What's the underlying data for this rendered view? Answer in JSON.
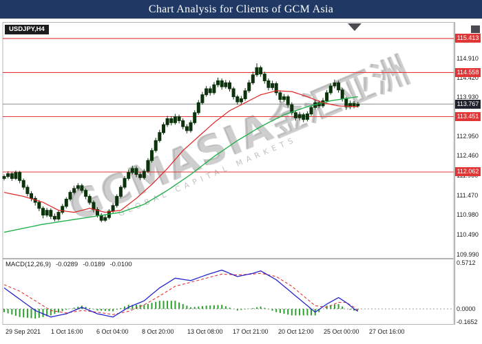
{
  "title_bar": {
    "text": "Chart Analysis for Clients of GCM Asia"
  },
  "chart": {
    "symbol_label": "USDJPY,H4",
    "watermark": {
      "main": "GCMASIA",
      "cjk": "金汇亚洲",
      "sub": "GLOBAL CAPITAL MARKETS"
    },
    "current_price_label": "113.767",
    "level_badges": [
      "115.413",
      "114.558",
      "113.451",
      "112.062"
    ]
  },
  "indicator": {
    "label": "MACD(12,26,9)",
    "value_macd": "-0.0289",
    "value_signal": "-0.0189",
    "value_hist": "-0.0100"
  },
  "colors": {
    "title_bg": "#203864",
    "level_red": "#e23535",
    "current_badge": "#20222e",
    "candle": "#0d330d",
    "ma_red": "#e02020",
    "ma_green": "#22b14c",
    "macd_line": "#2424cc",
    "signal_line": "#dd2222",
    "histogram": "#2aa12a"
  },
  "chart_data": [
    {
      "type": "candlestick",
      "symbol": "USDJPY",
      "timeframe": "H4",
      "price_axis_ticks": [
        "114.910",
        "114.420",
        "113.930",
        "112.950",
        "112.460",
        "111.960",
        "111.470",
        "110.980",
        "110.490",
        "109.990"
      ],
      "levels": [
        115.413,
        114.558,
        113.451,
        112.062
      ],
      "current_price": 113.767,
      "x_labels": [
        "29 Sep 2021",
        "1 Oct 16:00",
        "6 Oct 04:00",
        "8 Oct 20:00",
        "13 Oct 08:00",
        "17 Oct 21:00",
        "20 Oct 12:00",
        "25 Oct 00:00",
        "27 Oct 16:00"
      ],
      "candles": [
        [
          111.9,
          112.0,
          111.85,
          111.95
        ],
        [
          111.95,
          112.08,
          111.9,
          112.02
        ],
        [
          112.02,
          112.07,
          111.84,
          111.9
        ],
        [
          111.9,
          112.1,
          111.86,
          112.05
        ],
        [
          112.05,
          112.09,
          111.78,
          111.85
        ],
        [
          111.85,
          111.9,
          111.62,
          111.68
        ],
        [
          111.68,
          111.74,
          111.45,
          111.52
        ],
        [
          111.52,
          111.58,
          111.33,
          111.4
        ],
        [
          111.4,
          111.46,
          111.22,
          111.3
        ],
        [
          111.3,
          111.36,
          111.08,
          111.15
        ],
        [
          111.15,
          111.2,
          110.9,
          110.98
        ],
        [
          110.98,
          111.16,
          110.93,
          111.1
        ],
        [
          111.1,
          111.15,
          110.88,
          110.95
        ],
        [
          110.95,
          111.02,
          110.82,
          110.88
        ],
        [
          110.88,
          111.1,
          110.84,
          111.05
        ],
        [
          111.05,
          111.26,
          111.0,
          111.2
        ],
        [
          111.2,
          111.43,
          111.15,
          111.38
        ],
        [
          111.38,
          111.6,
          111.33,
          111.55
        ],
        [
          111.55,
          111.72,
          111.5,
          111.65
        ],
        [
          111.65,
          111.78,
          111.6,
          111.72
        ],
        [
          111.72,
          111.77,
          111.54,
          111.6
        ],
        [
          111.6,
          111.65,
          111.38,
          111.45
        ],
        [
          111.45,
          111.5,
          111.24,
          111.3
        ],
        [
          111.3,
          111.35,
          111.05,
          111.12
        ],
        [
          111.12,
          111.18,
          110.92,
          110.98
        ],
        [
          110.98,
          111.03,
          110.8,
          110.85
        ],
        [
          110.85,
          110.99,
          110.81,
          110.92
        ],
        [
          110.92,
          111.13,
          110.87,
          111.08
        ],
        [
          111.08,
          111.28,
          111.03,
          111.22
        ],
        [
          111.22,
          111.5,
          111.17,
          111.45
        ],
        [
          111.45,
          111.73,
          111.4,
          111.68
        ],
        [
          111.68,
          111.96,
          111.63,
          111.9
        ],
        [
          111.9,
          112.12,
          111.85,
          112.05
        ],
        [
          112.05,
          112.22,
          112.0,
          112.15
        ],
        [
          112.15,
          112.2,
          111.93,
          112.0
        ],
        [
          112.0,
          112.06,
          111.86,
          111.92
        ],
        [
          111.92,
          112.14,
          111.87,
          112.08
        ],
        [
          112.08,
          112.41,
          112.03,
          112.35
        ],
        [
          112.35,
          112.66,
          112.3,
          112.6
        ],
        [
          112.6,
          112.92,
          112.55,
          112.85
        ],
        [
          112.85,
          113.12,
          112.8,
          113.05
        ],
        [
          113.05,
          113.31,
          113.0,
          113.25
        ],
        [
          113.25,
          113.47,
          113.19,
          113.4
        ],
        [
          113.4,
          113.46,
          113.23,
          113.3
        ],
        [
          113.3,
          113.52,
          113.25,
          113.45
        ],
        [
          113.45,
          113.5,
          113.28,
          113.35
        ],
        [
          113.35,
          113.41,
          113.13,
          113.2
        ],
        [
          113.2,
          113.26,
          113.03,
          113.1
        ],
        [
          113.1,
          113.36,
          113.05,
          113.3
        ],
        [
          113.3,
          113.61,
          113.25,
          113.55
        ],
        [
          113.55,
          113.87,
          113.5,
          113.8
        ],
        [
          113.8,
          114.07,
          113.75,
          114.0
        ],
        [
          114.0,
          114.22,
          113.95,
          114.15
        ],
        [
          114.15,
          114.21,
          113.98,
          114.05
        ],
        [
          114.05,
          114.32,
          114.0,
          114.25
        ],
        [
          114.25,
          114.43,
          114.19,
          114.35
        ],
        [
          114.35,
          114.41,
          114.13,
          114.2
        ],
        [
          114.2,
          114.37,
          114.15,
          114.3
        ],
        [
          114.3,
          114.36,
          114.08,
          114.15
        ],
        [
          114.15,
          114.2,
          113.88,
          113.95
        ],
        [
          113.95,
          114.0,
          113.75,
          113.82
        ],
        [
          113.82,
          113.97,
          113.77,
          113.9
        ],
        [
          113.9,
          114.17,
          113.85,
          114.1
        ],
        [
          114.1,
          114.37,
          114.05,
          114.3
        ],
        [
          114.3,
          114.58,
          114.25,
          114.5
        ],
        [
          114.5,
          114.79,
          114.45,
          114.68
        ],
        [
          114.68,
          114.73,
          114.45,
          114.52
        ],
        [
          114.52,
          114.58,
          114.28,
          114.35
        ],
        [
          114.35,
          114.41,
          114.11,
          114.18
        ],
        [
          114.18,
          114.35,
          114.12,
          114.28
        ],
        [
          114.28,
          114.33,
          113.98,
          114.05
        ],
        [
          114.05,
          114.11,
          113.81,
          113.88
        ],
        [
          113.88,
          114.02,
          113.82,
          113.95
        ],
        [
          113.95,
          114.0,
          113.68,
          113.75
        ],
        [
          113.75,
          113.81,
          113.48,
          113.55
        ],
        [
          113.55,
          113.6,
          113.35,
          113.42
        ],
        [
          113.42,
          113.57,
          113.36,
          113.5
        ],
        [
          113.5,
          113.55,
          113.31,
          113.38
        ],
        [
          113.38,
          113.58,
          113.33,
          113.52
        ],
        [
          113.52,
          113.74,
          113.47,
          113.68
        ],
        [
          113.68,
          113.87,
          113.63,
          113.8
        ],
        [
          113.8,
          113.86,
          113.66,
          113.72
        ],
        [
          113.72,
          113.92,
          113.67,
          113.85
        ],
        [
          113.85,
          114.12,
          113.8,
          114.05
        ],
        [
          114.05,
          114.29,
          114.0,
          114.22
        ],
        [
          114.22,
          114.38,
          114.16,
          114.3
        ],
        [
          114.3,
          114.35,
          114.05,
          114.12
        ],
        [
          114.12,
          114.17,
          113.83,
          113.9
        ],
        [
          113.9,
          113.95,
          113.62,
          113.7
        ],
        [
          113.7,
          113.85,
          113.64,
          113.78
        ],
        [
          113.78,
          113.84,
          113.66,
          113.72
        ],
        [
          113.72,
          113.82,
          113.68,
          113.767
        ]
      ],
      "ma_red": [
        [
          0,
          111.55
        ],
        [
          5,
          111.45
        ],
        [
          10,
          111.3
        ],
        [
          14,
          111.1
        ],
        [
          18,
          111.05
        ],
        [
          22,
          111.15
        ],
        [
          26,
          111.05
        ],
        [
          30,
          111.1
        ],
        [
          34,
          111.4
        ],
        [
          38,
          111.75
        ],
        [
          42,
          112.15
        ],
        [
          46,
          112.6
        ],
        [
          50,
          112.95
        ],
        [
          54,
          113.3
        ],
        [
          58,
          113.6
        ],
        [
          62,
          113.8
        ],
        [
          66,
          114.0
        ],
        [
          70,
          114.1
        ],
        [
          74,
          114.08
        ],
        [
          78,
          113.95
        ],
        [
          82,
          113.8
        ],
        [
          86,
          113.72
        ],
        [
          91,
          113.7
        ]
      ],
      "ma_green": [
        [
          0,
          110.55
        ],
        [
          10,
          110.75
        ],
        [
          20,
          110.9
        ],
        [
          30,
          111.05
        ],
        [
          36,
          111.25
        ],
        [
          42,
          111.6
        ],
        [
          48,
          112.0
        ],
        [
          54,
          112.45
        ],
        [
          60,
          112.85
        ],
        [
          66,
          113.2
        ],
        [
          72,
          113.5
        ],
        [
          78,
          113.7
        ],
        [
          84,
          113.85
        ],
        [
          91,
          113.95
        ]
      ]
    },
    {
      "type": "macd",
      "name": "MACD(12,26,9)",
      "params": [
        12,
        26,
        9
      ],
      "axis_labels": [
        "0.5712",
        "0.0000",
        "-0.1652"
      ],
      "last_values": {
        "macd": -0.0289,
        "signal": -0.0189,
        "histogram": -0.01
      },
      "macd_anchors": [
        [
          0,
          0.26
        ],
        [
          4,
          0.12
        ],
        [
          8,
          -0.02
        ],
        [
          12,
          -0.1
        ],
        [
          16,
          -0.06
        ],
        [
          20,
          0.02
        ],
        [
          24,
          -0.06
        ],
        [
          28,
          -0.1
        ],
        [
          32,
          0.02
        ],
        [
          36,
          0.1
        ],
        [
          40,
          0.26
        ],
        [
          44,
          0.38
        ],
        [
          48,
          0.35
        ],
        [
          52,
          0.42
        ],
        [
          56,
          0.48
        ],
        [
          60,
          0.4
        ],
        [
          64,
          0.44
        ],
        [
          66,
          0.47
        ],
        [
          70,
          0.36
        ],
        [
          74,
          0.2
        ],
        [
          78,
          0.04
        ],
        [
          80,
          -0.04
        ],
        [
          83,
          0.06
        ],
        [
          86,
          0.14
        ],
        [
          88,
          0.08
        ],
        [
          90,
          0.0
        ],
        [
          91,
          -0.029
        ]
      ],
      "signal_anchors": [
        [
          0,
          0.3
        ],
        [
          4,
          0.22
        ],
        [
          8,
          0.1
        ],
        [
          12,
          -0.02
        ],
        [
          16,
          -0.05
        ],
        [
          20,
          -0.02
        ],
        [
          24,
          -0.04
        ],
        [
          28,
          -0.07
        ],
        [
          32,
          -0.03
        ],
        [
          36,
          0.05
        ],
        [
          40,
          0.16
        ],
        [
          44,
          0.28
        ],
        [
          48,
          0.33
        ],
        [
          52,
          0.38
        ],
        [
          56,
          0.43
        ],
        [
          60,
          0.42
        ],
        [
          64,
          0.43
        ],
        [
          66,
          0.44
        ],
        [
          70,
          0.4
        ],
        [
          74,
          0.28
        ],
        [
          78,
          0.12
        ],
        [
          80,
          0.04
        ],
        [
          83,
          0.02
        ],
        [
          86,
          0.08
        ],
        [
          88,
          0.08
        ],
        [
          90,
          0.02
        ],
        [
          91,
          -0.019
        ]
      ]
    }
  ]
}
